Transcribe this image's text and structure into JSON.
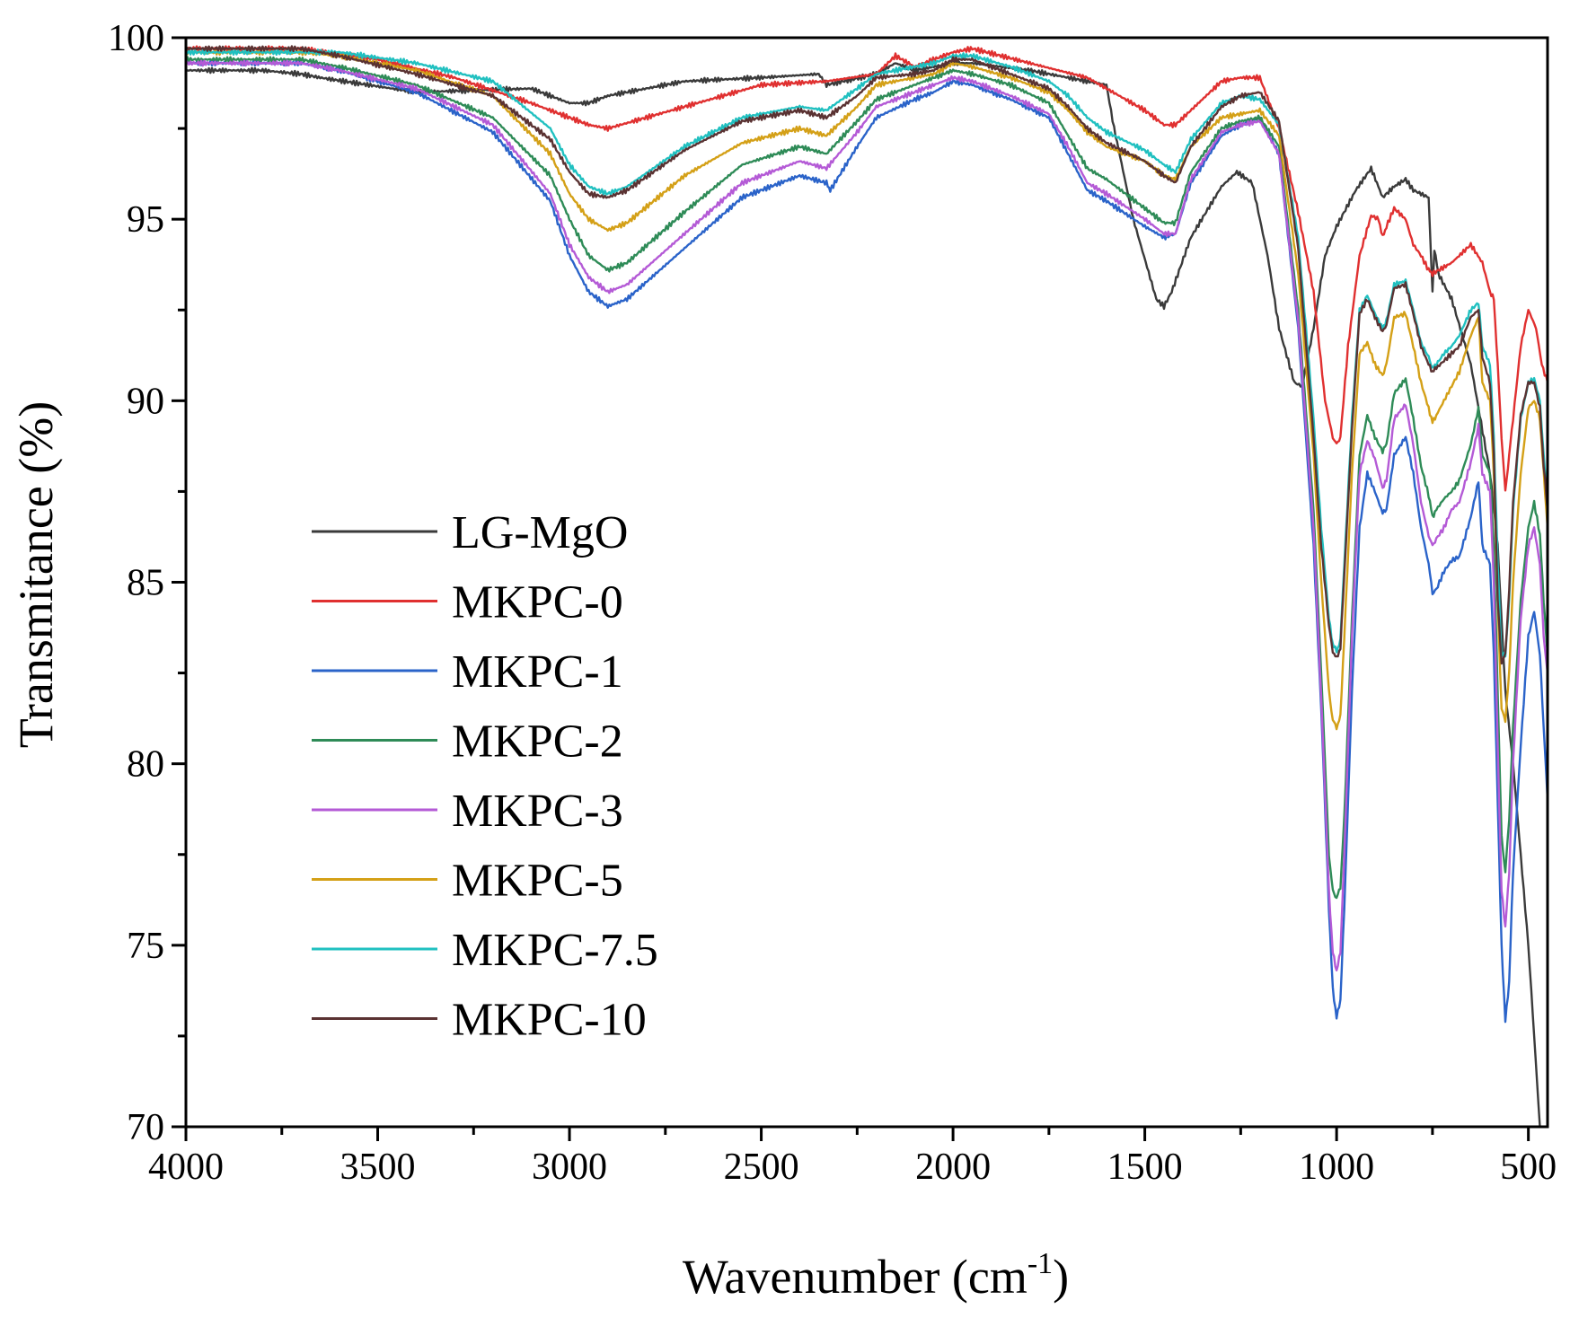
{
  "chart_data": {
    "type": "line",
    "title": "",
    "xlabel": "Wavenumber (cm",
    "xlabel_sup": "-1",
    "xlabel_close": ")",
    "ylabel": "Transmitance (%)",
    "xlim": [
      4000,
      450
    ],
    "ylim": [
      70,
      100
    ],
    "x_ticks": [
      4000,
      3500,
      3000,
      2500,
      2000,
      1500,
      1000,
      500
    ],
    "x_tick_labels": [
      "4000",
      "3500",
      "3000",
      "2500",
      "2000",
      "1500",
      "1000",
      "500"
    ],
    "x_minor_ticks": [
      3750,
      3250,
      2750,
      2250,
      1750,
      1250,
      750
    ],
    "y_ticks": [
      70,
      75,
      80,
      85,
      90,
      95,
      100
    ],
    "y_tick_labels": [
      "70",
      "75",
      "80",
      "85",
      "90",
      "95",
      "100"
    ],
    "y_minor_ticks": [
      72.5,
      77.5,
      82.5,
      87.5,
      92.5,
      97.5
    ],
    "grid": false,
    "legend_position": "center-left",
    "series": [
      {
        "name": "LG-MgO",
        "color": "#3a3a3a",
        "x": [
          4000,
          3800,
          3700,
          3650,
          3400,
          3100,
          3000,
          2950,
          2900,
          2700,
          2500,
          2350,
          2330,
          2200,
          2150,
          2100,
          2050,
          2000,
          1950,
          1800,
          1600,
          1580,
          1530,
          1470,
          1450,
          1430,
          1380,
          1300,
          1260,
          1220,
          1180,
          1150,
          1110,
          1090,
          1060,
          1030,
          1000,
          950,
          910,
          880,
          850,
          820,
          800,
          760,
          750,
          745,
          735,
          700,
          650,
          600,
          580,
          560,
          540,
          500,
          470
        ],
        "y": [
          99.1,
          99.1,
          99.0,
          98.9,
          98.5,
          98.6,
          98.2,
          98.2,
          98.4,
          98.8,
          98.9,
          99.0,
          98.7,
          99.0,
          99.3,
          99.1,
          99.2,
          99.3,
          99.3,
          99.1,
          98.7,
          97.5,
          95.0,
          92.8,
          92.6,
          93.0,
          94.5,
          95.9,
          96.3,
          96.0,
          94.0,
          92.0,
          90.5,
          90.4,
          92.0,
          94.0,
          94.8,
          95.8,
          96.4,
          95.6,
          95.9,
          96.1,
          95.8,
          95.6,
          93.0,
          94.2,
          93.5,
          92.8,
          91.0,
          88.0,
          86.0,
          82.0,
          80.0,
          75.0,
          70.0
        ]
      },
      {
        "name": "MKPC-0",
        "color": "#e03030",
        "x": [
          4000,
          3700,
          3500,
          3300,
          3100,
          3000,
          2950,
          2900,
          2700,
          2500,
          2330,
          2200,
          2150,
          2100,
          2000,
          1950,
          1800,
          1650,
          1600,
          1500,
          1450,
          1420,
          1350,
          1300,
          1250,
          1200,
          1150,
          1100,
          1060,
          1030,
          1010,
          1000,
          990,
          970,
          940,
          910,
          890,
          880,
          870,
          850,
          820,
          800,
          780,
          760,
          750,
          700,
          650,
          620,
          600,
          590,
          580,
          570,
          560,
          550,
          540,
          520,
          500,
          480,
          465,
          450
        ],
        "y": [
          99.7,
          99.7,
          99.4,
          98.9,
          98.2,
          97.8,
          97.6,
          97.5,
          98.1,
          98.7,
          98.8,
          99.0,
          99.5,
          99.2,
          99.6,
          99.7,
          99.3,
          98.9,
          98.6,
          98.0,
          97.6,
          97.6,
          98.3,
          98.8,
          98.9,
          98.9,
          97.5,
          95.2,
          93.0,
          90.0,
          89.0,
          88.8,
          89.0,
          91.5,
          94.0,
          95.1,
          95.0,
          94.5,
          94.8,
          95.3,
          95.0,
          94.3,
          94.0,
          93.6,
          93.5,
          93.8,
          94.3,
          93.8,
          93.0,
          92.8,
          91.0,
          89.0,
          87.5,
          88.5,
          89.5,
          91.5,
          92.5,
          92.0,
          91.0,
          90.5
        ]
      },
      {
        "name": "MKPC-1",
        "color": "#2a63c9",
        "x": [
          4000,
          3700,
          3600,
          3400,
          3200,
          3050,
          3000,
          2950,
          2900,
          2850,
          2700,
          2550,
          2400,
          2330,
          2320,
          2250,
          2200,
          2100,
          2050,
          2000,
          1950,
          1850,
          1750,
          1700,
          1650,
          1600,
          1500,
          1450,
          1420,
          1380,
          1300,
          1250,
          1200,
          1150,
          1100,
          1060,
          1040,
          1020,
          1010,
          1000,
          990,
          980,
          960,
          940,
          920,
          900,
          880,
          870,
          850,
          820,
          800,
          780,
          760,
          750,
          740,
          720,
          700,
          680,
          650,
          630,
          620,
          600,
          590,
          580,
          570,
          560,
          550,
          540,
          520,
          500,
          485,
          470,
          460,
          450
        ],
        "y": [
          99.3,
          99.3,
          99.1,
          98.5,
          97.4,
          95.5,
          94.0,
          93.0,
          92.6,
          92.8,
          94.2,
          95.6,
          96.2,
          96.0,
          95.8,
          97.0,
          97.8,
          98.3,
          98.5,
          98.8,
          98.7,
          98.3,
          97.8,
          96.8,
          95.8,
          95.5,
          94.8,
          94.5,
          94.6,
          96.0,
          97.3,
          97.6,
          97.8,
          96.8,
          92.0,
          86.0,
          81.5,
          76.0,
          73.8,
          73.0,
          73.5,
          76.0,
          82.0,
          86.5,
          88.0,
          87.5,
          86.9,
          87.0,
          88.5,
          89.0,
          88.0,
          86.5,
          85.5,
          84.7,
          84.8,
          85.3,
          85.6,
          85.7,
          86.8,
          87.8,
          86.0,
          85.5,
          83.0,
          79.0,
          75.0,
          72.9,
          74.0,
          77.0,
          80.5,
          83.5,
          84.2,
          83.0,
          81.0,
          79.0
        ]
      },
      {
        "name": "MKPC-2",
        "color": "#2e8b57",
        "x": [
          4000,
          3700,
          3600,
          3400,
          3200,
          3050,
          3000,
          2950,
          2900,
          2850,
          2700,
          2550,
          2400,
          2330,
          2250,
          2200,
          2100,
          2050,
          2000,
          1950,
          1850,
          1750,
          1700,
          1650,
          1600,
          1500,
          1450,
          1420,
          1380,
          1300,
          1250,
          1200,
          1150,
          1100,
          1060,
          1040,
          1020,
          1010,
          1000,
          990,
          980,
          960,
          940,
          920,
          900,
          880,
          870,
          850,
          820,
          800,
          780,
          760,
          750,
          740,
          720,
          700,
          680,
          650,
          630,
          620,
          600,
          590,
          580,
          570,
          560,
          550,
          540,
          520,
          500,
          485,
          470,
          460,
          450
        ],
        "y": [
          99.4,
          99.4,
          99.2,
          98.7,
          97.8,
          96.2,
          95.0,
          94.0,
          93.6,
          93.8,
          95.2,
          96.5,
          97.0,
          96.8,
          97.7,
          98.3,
          98.7,
          98.9,
          99.1,
          99.0,
          98.7,
          98.2,
          97.3,
          96.4,
          96.1,
          95.3,
          94.9,
          94.9,
          96.3,
          97.5,
          97.7,
          97.8,
          97.0,
          92.5,
          87.0,
          82.5,
          77.5,
          76.5,
          76.3,
          76.6,
          78.5,
          84.0,
          88.5,
          89.6,
          89.0,
          88.6,
          88.8,
          90.2,
          90.6,
          89.5,
          88.2,
          87.4,
          86.8,
          87.0,
          87.3,
          87.5,
          87.8,
          88.8,
          89.8,
          88.5,
          88.0,
          86.0,
          82.0,
          78.0,
          77.0,
          78.5,
          81.0,
          84.5,
          86.5,
          87.2,
          86.3,
          84.5,
          83.0
        ]
      },
      {
        "name": "MKPC-3",
        "color": "#b45ad6",
        "x": [
          4000,
          3700,
          3600,
          3400,
          3200,
          3050,
          3000,
          2950,
          2900,
          2850,
          2700,
          2550,
          2400,
          2330,
          2250,
          2200,
          2100,
          2050,
          2000,
          1950,
          1850,
          1750,
          1700,
          1650,
          1600,
          1500,
          1450,
          1420,
          1380,
          1300,
          1250,
          1200,
          1150,
          1100,
          1060,
          1040,
          1020,
          1010,
          1000,
          990,
          980,
          960,
          940,
          920,
          900,
          880,
          870,
          850,
          820,
          800,
          780,
          760,
          750,
          740,
          720,
          700,
          680,
          650,
          630,
          620,
          600,
          590,
          580,
          570,
          560,
          550,
          540,
          520,
          500,
          485,
          470,
          460,
          450
        ],
        "y": [
          99.3,
          99.3,
          99.1,
          98.6,
          97.6,
          95.7,
          94.3,
          93.4,
          93.0,
          93.2,
          94.6,
          96.0,
          96.6,
          96.4,
          97.4,
          98.1,
          98.5,
          98.7,
          98.9,
          98.8,
          98.4,
          97.9,
          97.0,
          96.0,
          95.7,
          95.0,
          94.6,
          94.6,
          96.1,
          97.4,
          97.6,
          97.7,
          96.8,
          92.2,
          86.5,
          81.8,
          76.5,
          74.8,
          74.3,
          74.8,
          77.5,
          83.5,
          88.0,
          88.9,
          88.4,
          87.6,
          87.8,
          89.5,
          89.9,
          88.8,
          87.2,
          86.3,
          86.0,
          86.2,
          86.5,
          87.0,
          87.2,
          88.3,
          89.3,
          88.0,
          87.5,
          85.0,
          80.5,
          76.5,
          75.5,
          77.0,
          80.0,
          84.0,
          86.0,
          86.5,
          85.5,
          83.5,
          82.5
        ]
      },
      {
        "name": "MKPC-5",
        "color": "#d4a017",
        "x": [
          4000,
          3700,
          3600,
          3400,
          3200,
          3050,
          3000,
          2950,
          2900,
          2850,
          2700,
          2550,
          2400,
          2330,
          2250,
          2200,
          2100,
          2050,
          2000,
          1950,
          1850,
          1750,
          1700,
          1650,
          1600,
          1500,
          1450,
          1420,
          1380,
          1300,
          1250,
          1200,
          1150,
          1100,
          1060,
          1040,
          1020,
          1010,
          1000,
          990,
          980,
          960,
          940,
          920,
          900,
          880,
          870,
          850,
          820,
          800,
          780,
          760,
          750,
          740,
          720,
          700,
          680,
          650,
          630,
          620,
          600,
          590,
          580,
          570,
          560,
          550,
          540,
          520,
          500,
          485,
          470,
          460,
          450
        ],
        "y": [
          99.6,
          99.6,
          99.5,
          99.1,
          98.4,
          96.8,
          95.7,
          95.0,
          94.7,
          94.9,
          96.2,
          97.1,
          97.5,
          97.3,
          98.1,
          98.7,
          98.9,
          99.0,
          99.3,
          99.2,
          98.9,
          98.5,
          98.0,
          97.4,
          97.0,
          96.6,
          96.2,
          96.1,
          97.0,
          97.8,
          97.9,
          98.0,
          97.3,
          93.5,
          88.5,
          85.0,
          82.0,
          81.2,
          81.0,
          81.3,
          83.5,
          88.0,
          91.3,
          91.6,
          91.0,
          90.7,
          91.0,
          92.3,
          92.4,
          91.5,
          90.5,
          89.8,
          89.4,
          89.6,
          90.0,
          90.4,
          90.8,
          91.8,
          92.3,
          90.5,
          90.0,
          88.0,
          84.5,
          81.5,
          81.2,
          82.5,
          85.0,
          88.0,
          89.8,
          90.0,
          89.5,
          88.0,
          86.5
        ]
      },
      {
        "name": "MKPC-7.5",
        "color": "#20c0c0",
        "x": [
          4000,
          3700,
          3600,
          3400,
          3200,
          3050,
          3000,
          2950,
          2900,
          2850,
          2700,
          2550,
          2400,
          2330,
          2250,
          2200,
          2100,
          2050,
          2000,
          1950,
          1850,
          1750,
          1700,
          1650,
          1600,
          1500,
          1450,
          1420,
          1380,
          1300,
          1250,
          1200,
          1150,
          1100,
          1060,
          1040,
          1020,
          1010,
          1000,
          990,
          980,
          960,
          940,
          920,
          900,
          880,
          870,
          850,
          820,
          800,
          780,
          760,
          750,
          740,
          720,
          700,
          680,
          650,
          630,
          620,
          600,
          590,
          580,
          570,
          560,
          550,
          540,
          520,
          500,
          485,
          470,
          460,
          450
        ],
        "y": [
          99.6,
          99.6,
          99.6,
          99.3,
          98.8,
          97.5,
          96.5,
          95.9,
          95.7,
          95.9,
          97.0,
          97.8,
          98.1,
          98.0,
          98.6,
          99.0,
          99.2,
          99.3,
          99.5,
          99.5,
          99.2,
          98.8,
          98.4,
          97.8,
          97.4,
          96.9,
          96.5,
          96.3,
          97.2,
          98.2,
          98.4,
          98.3,
          97.6,
          94.5,
          89.5,
          86.5,
          84.0,
          83.3,
          83.1,
          83.4,
          85.5,
          89.5,
          92.5,
          92.9,
          92.4,
          92.0,
          92.2,
          93.2,
          93.3,
          92.5,
          91.6,
          91.2,
          90.9,
          91.0,
          91.3,
          91.5,
          91.8,
          92.5,
          92.7,
          91.5,
          91.0,
          89.0,
          85.5,
          83.0,
          83.0,
          84.5,
          87.0,
          89.5,
          90.5,
          90.6,
          90.0,
          88.5,
          87.0
        ]
      },
      {
        "name": "MKPC-10",
        "color": "#5a3232",
        "x": [
          4000,
          3700,
          3600,
          3400,
          3200,
          3050,
          3000,
          2950,
          2900,
          2850,
          2700,
          2550,
          2400,
          2330,
          2250,
          2200,
          2100,
          2050,
          2000,
          1950,
          1850,
          1750,
          1700,
          1650,
          1600,
          1500,
          1450,
          1420,
          1380,
          1300,
          1250,
          1200,
          1150,
          1100,
          1060,
          1040,
          1020,
          1010,
          1000,
          990,
          980,
          960,
          940,
          920,
          900,
          880,
          870,
          850,
          820,
          800,
          780,
          760,
          750,
          740,
          720,
          700,
          680,
          650,
          630,
          620,
          600,
          590,
          580,
          570,
          560,
          550,
          540,
          520,
          500,
          485,
          470,
          460,
          450
        ],
        "y": [
          99.7,
          99.7,
          99.5,
          99.0,
          98.4,
          97.2,
          96.3,
          95.7,
          95.6,
          95.8,
          96.9,
          97.7,
          98.0,
          97.8,
          98.4,
          98.9,
          99.0,
          99.1,
          99.4,
          99.4,
          99.0,
          98.6,
          98.1,
          97.5,
          97.1,
          96.6,
          96.2,
          96.0,
          97.0,
          98.1,
          98.4,
          98.5,
          97.7,
          94.2,
          89.0,
          86.0,
          83.8,
          83.1,
          82.9,
          83.2,
          85.2,
          89.2,
          92.4,
          92.8,
          92.3,
          91.9,
          92.1,
          93.1,
          93.2,
          92.4,
          91.5,
          91.0,
          90.8,
          90.9,
          91.1,
          91.3,
          91.5,
          92.3,
          92.5,
          91.2,
          90.5,
          88.5,
          84.5,
          82.8,
          83.0,
          84.8,
          87.2,
          89.6,
          90.5,
          90.5,
          89.8,
          88.2,
          87.0
        ]
      }
    ]
  }
}
